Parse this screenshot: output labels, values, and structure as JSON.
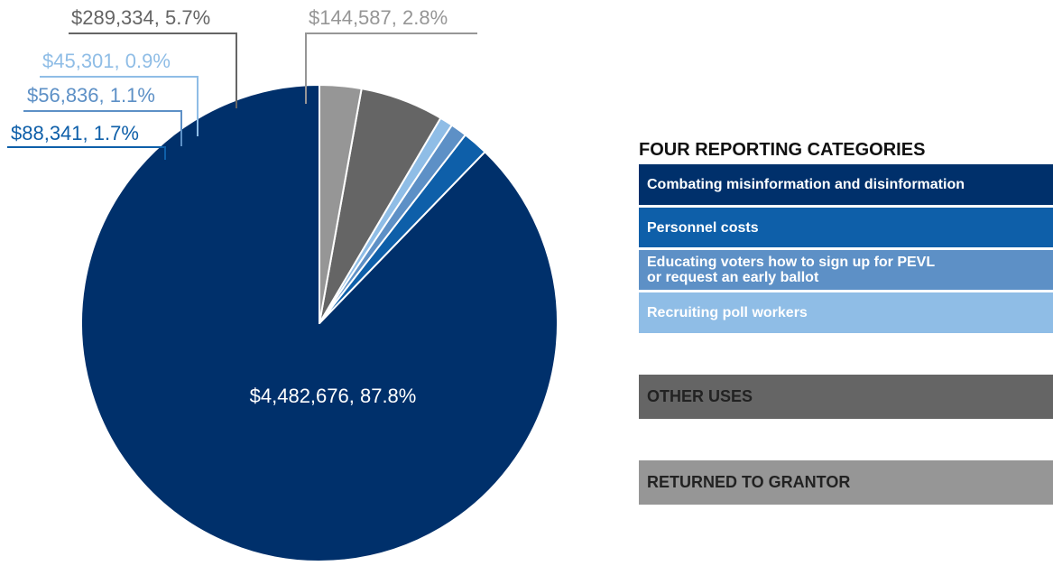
{
  "chart_data": {
    "type": "pie",
    "slices": [
      {
        "label": "$4,482,676, 87.8%",
        "value": 4482676,
        "percent": 87.8,
        "color": "#00306b"
      },
      {
        "label": "$88,341, 1.7%",
        "value": 88341,
        "percent": 1.7,
        "color": "#0e5fa9"
      },
      {
        "label": "$56,836, 1.1%",
        "value": 56836,
        "percent": 1.1,
        "color": "#5d90c6"
      },
      {
        "label": "$45,301, 0.9%",
        "value": 45301,
        "percent": 0.9,
        "color": "#8fbde6"
      },
      {
        "label": "$289,334, 5.7%",
        "value": 289334,
        "percent": 5.7,
        "color": "#656565"
      },
      {
        "label": "$144,587, 2.8%",
        "value": 144587,
        "percent": 2.8,
        "color": "#969696"
      }
    ],
    "legend": {
      "heading": "FOUR REPORTING CATEGORIES",
      "categories": [
        {
          "label": "Combating misinformation and disinformation",
          "color": "#00306b"
        },
        {
          "label": "Personnel costs",
          "color": "#0e5fa9"
        },
        {
          "label": "Educating voters how to sign up for PEVL\nor request an early ballot",
          "color": "#5d90c6"
        },
        {
          "label": "Recruiting poll workers",
          "color": "#8fbde6"
        }
      ],
      "other_uses": {
        "label": "OTHER USES",
        "color": "#656565"
      },
      "returned": {
        "label": "RETURNED TO GRANTOR",
        "color": "#969696"
      }
    }
  }
}
